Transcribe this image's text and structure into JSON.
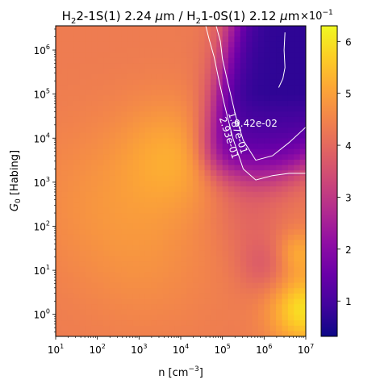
{
  "chart_data": {
    "type": "heatmap",
    "title_parts": [
      "H",
      "2",
      "2-1S(1) 2.24 ",
      "μ",
      "m / H",
      "2",
      "1-0S(1) 2.12 ",
      "μ",
      "m"
    ],
    "xlabel_parts": [
      "n [cm",
      "−3",
      "]"
    ],
    "ylabel_parts": [
      "G",
      "0",
      " [Habing]"
    ],
    "x_scale": "log",
    "y_scale": "log",
    "xlim_log10": [
      1,
      7
    ],
    "ylim_log10": [
      -0.5,
      6.55
    ],
    "x_ticks": [
      {
        "exp": 1,
        "base": "10",
        "sup": "1"
      },
      {
        "exp": 2,
        "base": "10",
        "sup": "2"
      },
      {
        "exp": 3,
        "base": "10",
        "sup": "3"
      },
      {
        "exp": 4,
        "base": "10",
        "sup": "4"
      },
      {
        "exp": 5,
        "base": "10",
        "sup": "5"
      },
      {
        "exp": 6,
        "base": "10",
        "sup": "6"
      },
      {
        "exp": 7,
        "base": "10",
        "sup": "7"
      }
    ],
    "y_ticks": [
      {
        "exp": 0,
        "base": "10",
        "sup": "0"
      },
      {
        "exp": 1,
        "base": "10",
        "sup": "1"
      },
      {
        "exp": 2,
        "base": "10",
        "sup": "2"
      },
      {
        "exp": 3,
        "base": "10",
        "sup": "3"
      },
      {
        "exp": 4,
        "base": "10",
        "sup": "4"
      },
      {
        "exp": 5,
        "base": "10",
        "sup": "5"
      },
      {
        "exp": 6,
        "base": "10",
        "sup": "6"
      }
    ],
    "colorbar": {
      "colormap": "plasma",
      "min": 0.32,
      "max": 6.3,
      "ticks": [
        "1",
        "2",
        "3",
        "4",
        "5",
        "6"
      ],
      "multiplier_base": "×10",
      "multiplier_sup": "−1"
    },
    "contours": [
      {
        "label": "9.42e-02",
        "value": 0.0942,
        "points": [
          [
            6.5,
            6.4
          ],
          [
            6.48,
            6.0
          ],
          [
            6.5,
            5.6
          ],
          [
            6.45,
            5.35
          ],
          [
            6.35,
            5.15
          ]
        ]
      },
      {
        "label": "1.87e-01",
        "value": 0.187,
        "points": [
          [
            4.85,
            6.55
          ],
          [
            4.95,
            6.2
          ],
          [
            5.0,
            5.8
          ],
          [
            5.12,
            5.3
          ],
          [
            5.22,
            4.9
          ],
          [
            5.32,
            4.5
          ],
          [
            5.5,
            3.95
          ],
          [
            5.8,
            3.5
          ],
          [
            6.2,
            3.6
          ],
          [
            6.6,
            3.9
          ],
          [
            7.0,
            4.25
          ]
        ]
      },
      {
        "label": "2.93e-01",
        "value": 0.293,
        "points": [
          [
            4.6,
            6.55
          ],
          [
            4.68,
            6.25
          ],
          [
            4.8,
            5.85
          ],
          [
            4.92,
            5.3
          ],
          [
            5.05,
            4.75
          ],
          [
            5.25,
            4.0
          ],
          [
            5.5,
            3.3
          ],
          [
            5.8,
            3.05
          ],
          [
            6.2,
            3.15
          ],
          [
            6.6,
            3.2
          ],
          [
            7.0,
            3.2
          ]
        ]
      }
    ]
  }
}
